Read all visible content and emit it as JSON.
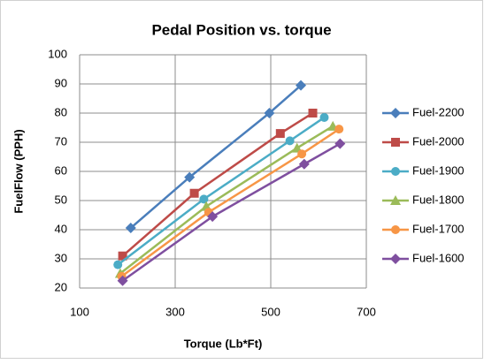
{
  "chart_data": {
    "type": "line",
    "title": "Pedal Position vs. torque",
    "x_label": "Torque (Lb*Ft)",
    "y_label": "FuelFlow (PPH)",
    "xlim": [
      100,
      700
    ],
    "xticks": [
      100,
      300,
      500,
      700
    ],
    "ylim": [
      20,
      100
    ],
    "yticks": [
      20,
      30,
      40,
      50,
      60,
      70,
      80,
      90,
      100
    ],
    "grid": true,
    "legend": "right",
    "series": [
      {
        "name": "Fuel-2200",
        "color": "#4a7ebb",
        "marker": "diamond",
        "x": [
          207,
          330,
          497,
          563
        ],
        "values": [
          40.6,
          58,
          80,
          89.5
        ]
      },
      {
        "name": "Fuel-2000",
        "color": "#be4b48",
        "marker": "square",
        "x": [
          190,
          340,
          520,
          588
        ],
        "values": [
          31,
          52.5,
          73,
          80
        ]
      },
      {
        "name": "Fuel-1900",
        "color": "#4bacc6",
        "marker": "circle",
        "x": [
          180,
          360,
          540,
          612
        ],
        "values": [
          28,
          50.5,
          70.5,
          78.5
        ]
      },
      {
        "name": "Fuel-1800",
        "color": "#9bbb59",
        "marker": "triangle",
        "x": [
          185,
          365,
          555,
          630
        ],
        "values": [
          25,
          48,
          68,
          75.5
        ]
      },
      {
        "name": "Fuel-1700",
        "color": "#f79646",
        "marker": "circle",
        "x": [
          188,
          370,
          565,
          643
        ],
        "values": [
          24,
          46,
          66,
          74.5
        ]
      },
      {
        "name": "Fuel-1600",
        "color": "#7f4f9f",
        "marker": "diamond",
        "x": [
          190,
          378,
          570,
          645
        ],
        "values": [
          22.5,
          44.5,
          62.5,
          69.5
        ]
      }
    ]
  }
}
